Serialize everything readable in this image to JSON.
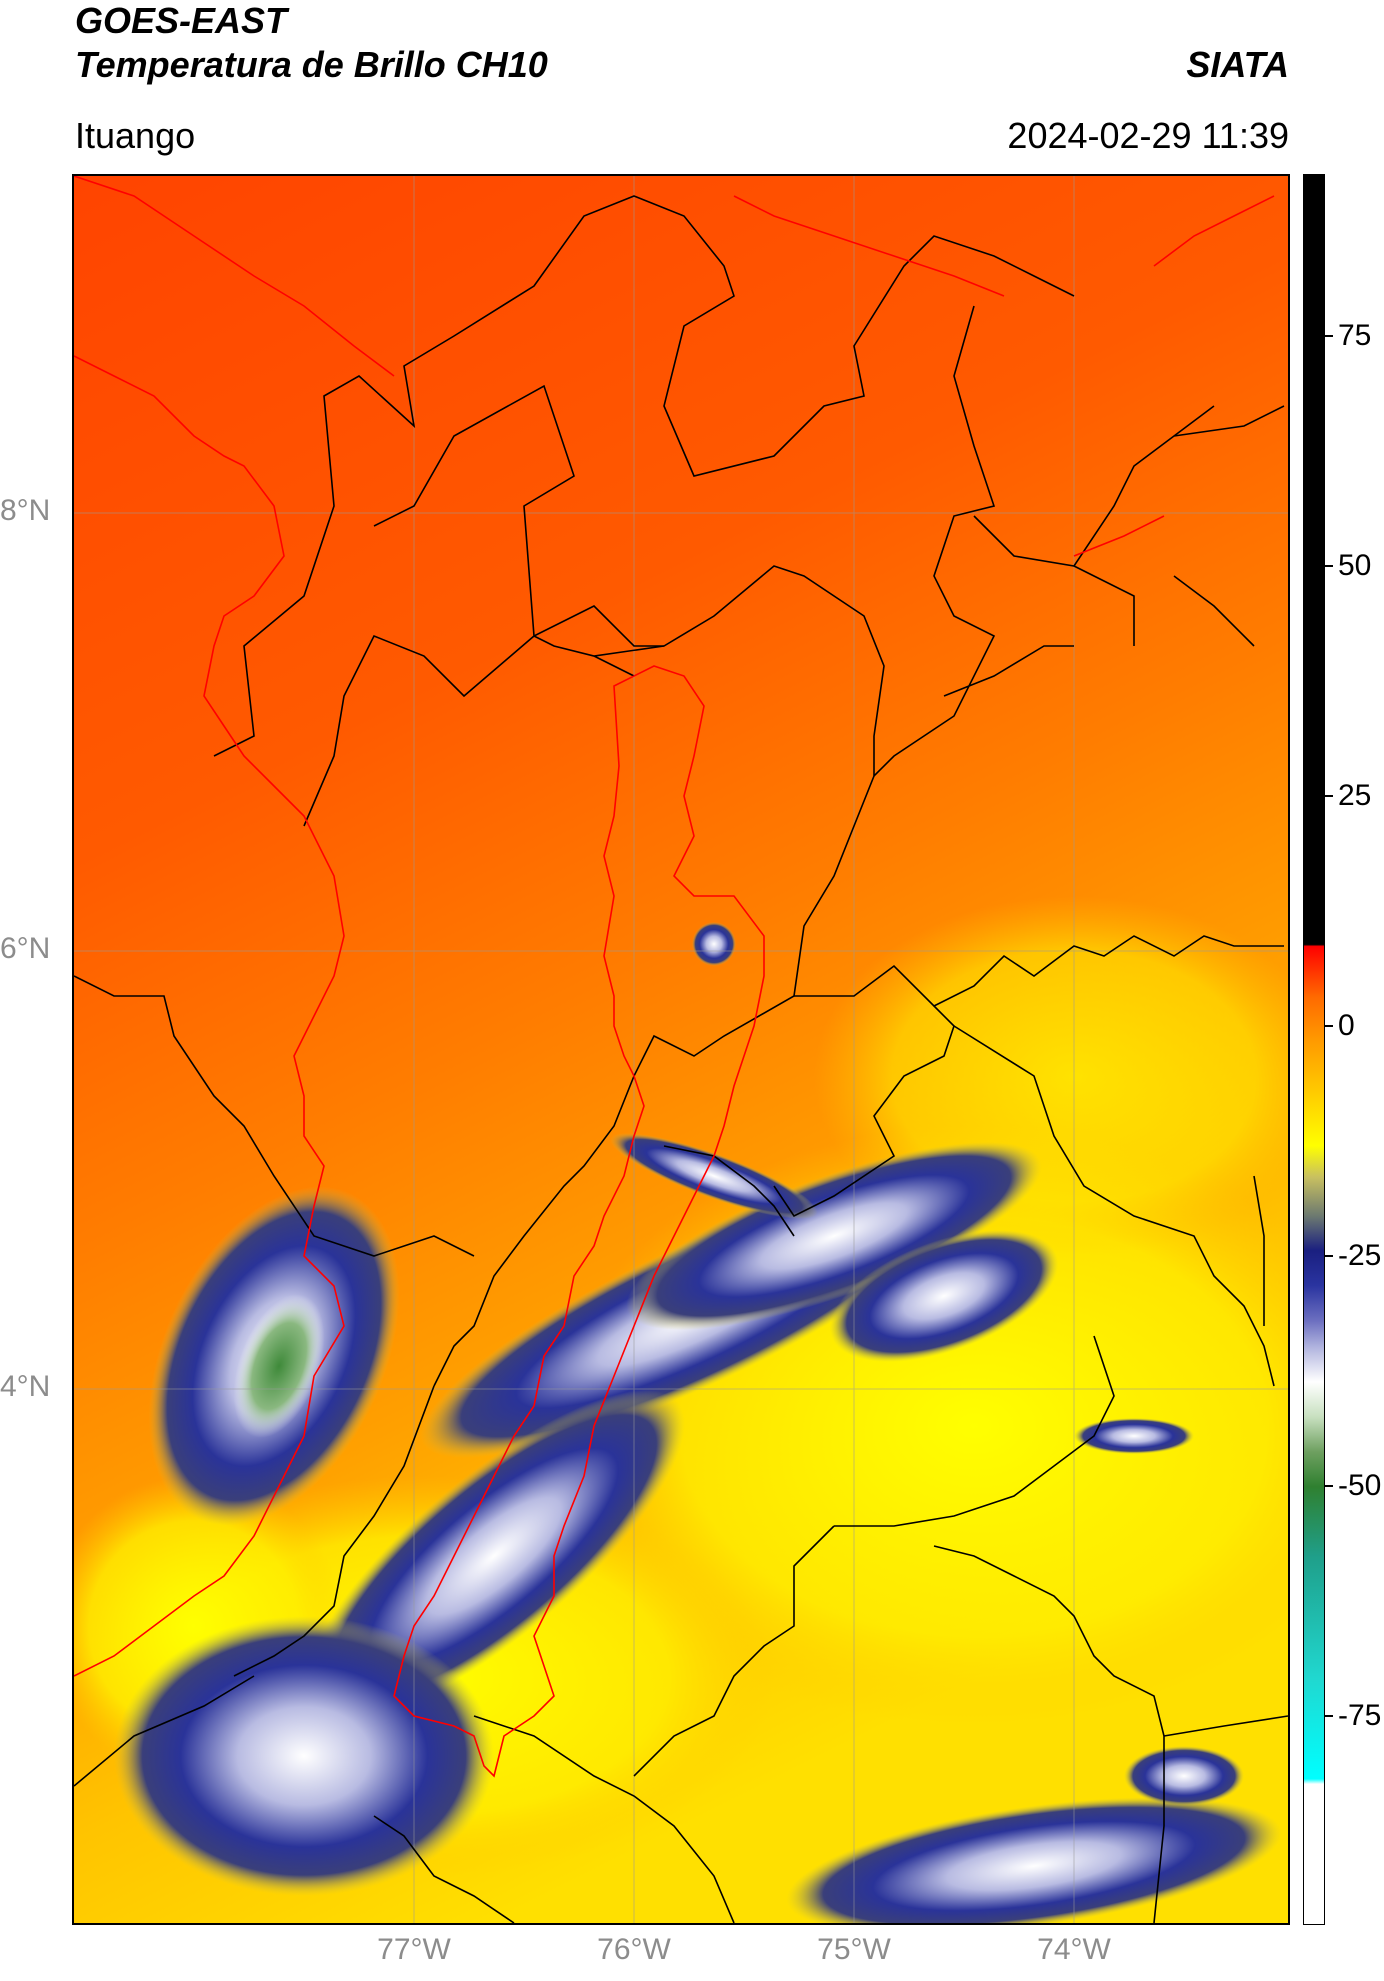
{
  "header": {
    "satellite": "GOES-EAST",
    "product": "Temperatura de Brillo CH10",
    "organization": "SIATA",
    "region": "Ituango",
    "timestamp": "2024-02-29 11:39"
  },
  "map": {
    "lat_labels": [
      "8°N",
      "6°N",
      "4°N"
    ],
    "lon_labels": [
      "77°W",
      "76°W",
      "75°W",
      "74°W"
    ],
    "gridlines": true,
    "watershed_outline_color": "#ff0000",
    "boundary_color": "#000000"
  },
  "colorbar": {
    "tick_labels": [
      "75",
      "50",
      "25",
      "0",
      "-25",
      "-50",
      "-75"
    ],
    "colors": {
      "warm": "#ff4a00",
      "mid": "#ff9a00",
      "cool": "#ffff00",
      "cold": "#1a1f80",
      "very_cold": "#ffffff",
      "coldest": "#2f8030"
    }
  }
}
